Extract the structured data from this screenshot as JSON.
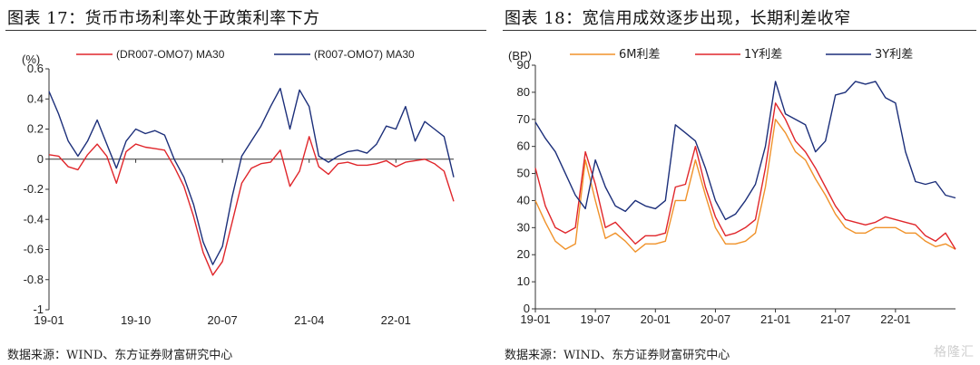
{
  "watermark": "格隆汇",
  "chart_data": [
    {
      "type": "line",
      "title": "图表 17：货币市场利率处于政策利率下方",
      "source": "数据来源：WIND、东方证券财富研究中心",
      "unit_label": "(%)",
      "ylim": [
        -1,
        0.6
      ],
      "yticks": [
        "0.6",
        "0.4",
        "0.2",
        "0",
        "-0.2",
        "-0.4",
        "-0.6",
        "-0.8",
        "-1"
      ],
      "xticks": [
        "19-01",
        "19-10",
        "20-07",
        "21-04",
        "22-01"
      ],
      "x_range": [
        "2019-01",
        "2022-07"
      ],
      "grid": false,
      "legend_position": "top",
      "colors": {
        "dr": "#e0262b",
        "r": "#1c2f7a"
      },
      "series": [
        {
          "name": "(DR007-OMO7) MA30",
          "color": "#e0262b",
          "x": [
            "2019-01",
            "2019-02",
            "2019-03",
            "2019-04",
            "2019-05",
            "2019-06",
            "2019-07",
            "2019-08",
            "2019-09",
            "2019-10",
            "2019-11",
            "2019-12",
            "2020-01",
            "2020-02",
            "2020-03",
            "2020-04",
            "2020-05",
            "2020-06",
            "2020-07",
            "2020-08",
            "2020-09",
            "2020-10",
            "2020-11",
            "2020-12",
            "2021-01",
            "2021-02",
            "2021-03",
            "2021-04",
            "2021-05",
            "2021-06",
            "2021-07",
            "2021-08",
            "2021-09",
            "2021-10",
            "2021-11",
            "2021-12",
            "2022-01",
            "2022-02",
            "2022-03",
            "2022-04",
            "2022-05",
            "2022-06",
            "2022-07"
          ],
          "values": [
            0.03,
            0.02,
            -0.05,
            -0.07,
            0.03,
            0.1,
            0.02,
            -0.16,
            0.05,
            0.1,
            0.08,
            0.07,
            0.06,
            -0.05,
            -0.18,
            -0.38,
            -0.62,
            -0.77,
            -0.68,
            -0.42,
            -0.16,
            -0.06,
            -0.03,
            -0.02,
            0.06,
            -0.18,
            -0.08,
            0.15,
            -0.05,
            -0.1,
            -0.03,
            -0.02,
            -0.04,
            -0.04,
            -0.03,
            -0.01,
            -0.05,
            -0.02,
            -0.01,
            0.0,
            -0.03,
            -0.08,
            -0.28
          ]
        },
        {
          "name": "(R007-OMO7) MA30",
          "color": "#1c2f7a",
          "x": [
            "2019-01",
            "2019-02",
            "2019-03",
            "2019-04",
            "2019-05",
            "2019-06",
            "2019-07",
            "2019-08",
            "2019-09",
            "2019-10",
            "2019-11",
            "2019-12",
            "2020-01",
            "2020-02",
            "2020-03",
            "2020-04",
            "2020-05",
            "2020-06",
            "2020-07",
            "2020-08",
            "2020-09",
            "2020-10",
            "2020-11",
            "2020-12",
            "2021-01",
            "2021-02",
            "2021-03",
            "2021-04",
            "2021-05",
            "2021-06",
            "2021-07",
            "2021-08",
            "2021-09",
            "2021-10",
            "2021-11",
            "2021-12",
            "2022-01",
            "2022-02",
            "2022-03",
            "2022-04",
            "2022-05",
            "2022-06",
            "2022-07"
          ],
          "values": [
            0.45,
            0.3,
            0.12,
            0.02,
            0.12,
            0.26,
            0.1,
            -0.06,
            0.12,
            0.2,
            0.17,
            0.19,
            0.16,
            0.0,
            -0.12,
            -0.3,
            -0.55,
            -0.7,
            -0.58,
            -0.25,
            0.02,
            0.12,
            0.22,
            0.35,
            0.47,
            0.2,
            0.46,
            0.35,
            0.02,
            -0.02,
            0.02,
            0.05,
            0.06,
            0.04,
            0.1,
            0.22,
            0.2,
            0.35,
            0.12,
            0.25,
            0.2,
            0.15,
            -0.12
          ]
        }
      ]
    },
    {
      "type": "line",
      "title": "图表 18：宽信用成效逐步出现，长期利差收窄",
      "source": "数据来源：WIND、东方证券财富研究中心",
      "unit_label": "(BP)",
      "ylim": [
        0,
        90
      ],
      "yticks": [
        "90",
        "80",
        "70",
        "60",
        "50",
        "40",
        "30",
        "20",
        "10",
        "0"
      ],
      "xticks": [
        "19-01",
        "19-07",
        "20-01",
        "20-07",
        "21-01",
        "21-07",
        "22-01"
      ],
      "x_range": [
        "2019-01",
        "2022-07"
      ],
      "grid": false,
      "legend_position": "top",
      "colors": {
        "m6": "#f0922a",
        "y1": "#e0262b",
        "y3": "#1c2f7a"
      },
      "series": [
        {
          "name": "6M利差",
          "color": "#f0922a",
          "x": [
            "2019-01",
            "2019-02",
            "2019-03",
            "2019-04",
            "2019-05",
            "2019-06",
            "2019-07",
            "2019-08",
            "2019-09",
            "2019-10",
            "2019-11",
            "2019-12",
            "2020-01",
            "2020-02",
            "2020-03",
            "2020-04",
            "2020-05",
            "2020-06",
            "2020-07",
            "2020-08",
            "2020-09",
            "2020-10",
            "2020-11",
            "2020-12",
            "2021-01",
            "2021-02",
            "2021-03",
            "2021-04",
            "2021-05",
            "2021-06",
            "2021-07",
            "2021-08",
            "2021-09",
            "2021-10",
            "2021-11",
            "2021-12",
            "2022-01",
            "2022-02",
            "2022-03",
            "2022-04",
            "2022-05",
            "2022-06",
            "2022-07"
          ],
          "values": [
            40,
            32,
            25,
            22,
            24,
            55,
            40,
            26,
            28,
            25,
            21,
            24,
            24,
            25,
            40,
            40,
            55,
            42,
            30,
            24,
            24,
            25,
            28,
            45,
            70,
            65,
            58,
            55,
            48,
            42,
            35,
            30,
            28,
            28,
            30,
            30,
            30,
            28,
            28,
            25,
            23,
            24,
            22
          ]
        },
        {
          "name": "1Y利差",
          "color": "#e0262b",
          "x": [
            "2019-01",
            "2019-02",
            "2019-03",
            "2019-04",
            "2019-05",
            "2019-06",
            "2019-07",
            "2019-08",
            "2019-09",
            "2019-10",
            "2019-11",
            "2019-12",
            "2020-01",
            "2020-02",
            "2020-03",
            "2020-04",
            "2020-05",
            "2020-06",
            "2020-07",
            "2020-08",
            "2020-09",
            "2020-10",
            "2020-11",
            "2020-12",
            "2021-01",
            "2021-02",
            "2021-03",
            "2021-04",
            "2021-05",
            "2021-06",
            "2021-07",
            "2021-08",
            "2021-09",
            "2021-10",
            "2021-11",
            "2021-12",
            "2022-01",
            "2022-02",
            "2022-03",
            "2022-04",
            "2022-05",
            "2022-06",
            "2022-07"
          ],
          "values": [
            52,
            38,
            30,
            28,
            30,
            58,
            46,
            30,
            32,
            28,
            24,
            27,
            27,
            28,
            45,
            46,
            60,
            45,
            34,
            27,
            28,
            30,
            33,
            52,
            76,
            70,
            62,
            58,
            52,
            45,
            38,
            33,
            32,
            31,
            32,
            34,
            33,
            32,
            31,
            27,
            25,
            28,
            22
          ]
        },
        {
          "name": "3Y利差",
          "color": "#1c2f7a",
          "x": [
            "2019-01",
            "2019-02",
            "2019-03",
            "2019-04",
            "2019-05",
            "2019-06",
            "2019-07",
            "2019-08",
            "2019-09",
            "2019-10",
            "2019-11",
            "2019-12",
            "2020-01",
            "2020-02",
            "2020-03",
            "2020-04",
            "2020-05",
            "2020-06",
            "2020-07",
            "2020-08",
            "2020-09",
            "2020-10",
            "2020-11",
            "2020-12",
            "2021-01",
            "2021-02",
            "2021-03",
            "2021-04",
            "2021-05",
            "2021-06",
            "2021-07",
            "2021-08",
            "2021-09",
            "2021-10",
            "2021-11",
            "2021-12",
            "2022-01",
            "2022-02",
            "2022-03",
            "2022-04",
            "2022-05",
            "2022-06",
            "2022-07"
          ],
          "values": [
            69,
            63,
            58,
            50,
            42,
            37,
            55,
            45,
            38,
            36,
            40,
            38,
            37,
            40,
            68,
            65,
            62,
            52,
            40,
            33,
            35,
            40,
            46,
            60,
            84,
            72,
            70,
            68,
            58,
            62,
            79,
            80,
            84,
            83,
            84,
            78,
            76,
            58,
            47,
            46,
            47,
            42,
            41
          ]
        }
      ]
    }
  ]
}
